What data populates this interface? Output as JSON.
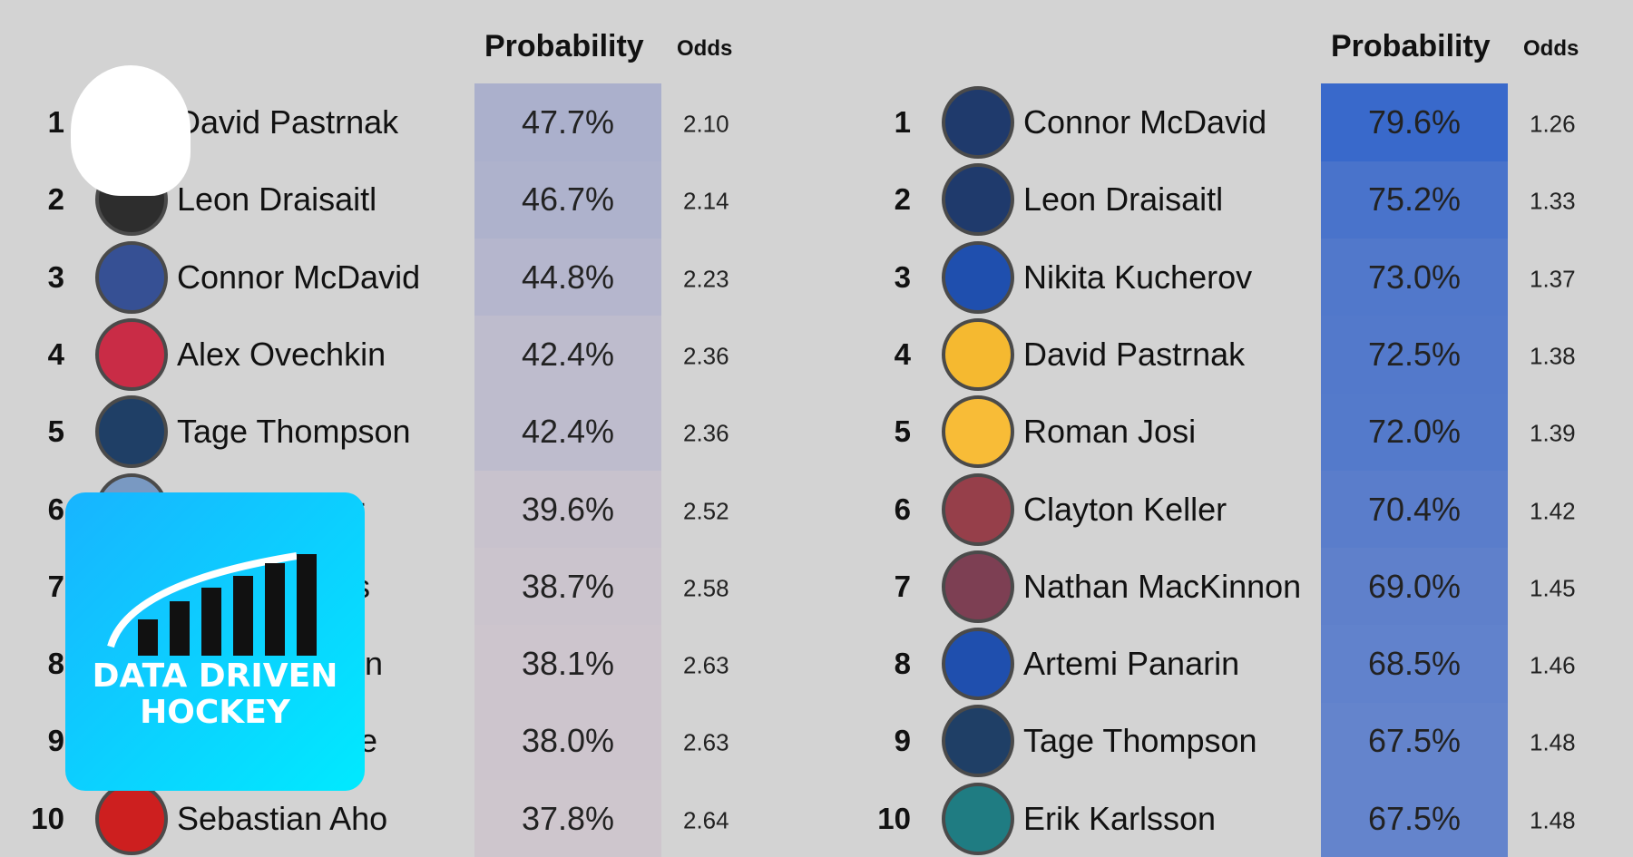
{
  "tables": [
    {
      "headers": {
        "probability": "Probability",
        "odds": "Odds"
      },
      "rows": [
        {
          "rank": 1,
          "name": "David Pastrnak",
          "probability": 47.7,
          "probability_label": "47.7%",
          "odds": "2.10"
        },
        {
          "rank": 2,
          "name": "Leon Draisaitl",
          "probability": 46.7,
          "probability_label": "46.7%",
          "odds": "2.14"
        },
        {
          "rank": 3,
          "name": "Connor McDavid",
          "probability": 44.8,
          "probability_label": "44.8%",
          "odds": "2.23"
        },
        {
          "rank": 4,
          "name": "Alex Ovechkin",
          "probability": 42.4,
          "probability_label": "42.4%",
          "odds": "2.36"
        },
        {
          "rank": 5,
          "name": "Tage Thompson",
          "probability": 42.4,
          "probability_label": "42.4%",
          "odds": "2.36"
        },
        {
          "rank": 6,
          "name": "r",
          "probability": 39.6,
          "probability_label": "39.6%",
          "odds": "2.52"
        },
        {
          "rank": 7,
          "name": "s",
          "probability": 38.7,
          "probability_label": "38.7%",
          "odds": "2.58"
        },
        {
          "rank": 8,
          "name": "nen",
          "probability": 38.1,
          "probability_label": "38.1%",
          "odds": "2.63"
        },
        {
          "rank": 9,
          "name": "ne",
          "probability": 38.0,
          "probability_label": "38.0%",
          "odds": "2.63"
        },
        {
          "rank": 10,
          "name": "Sebastian Aho",
          "probability": 37.8,
          "probability_label": "37.8%",
          "odds": "2.64"
        }
      ]
    },
    {
      "headers": {
        "probability": "Probability",
        "odds": "Odds"
      },
      "rows": [
        {
          "rank": 1,
          "name": "Connor McDavid",
          "probability": 79.6,
          "probability_label": "79.6%",
          "odds": "1.26"
        },
        {
          "rank": 2,
          "name": "Leon Draisaitl",
          "probability": 75.2,
          "probability_label": "75.2%",
          "odds": "1.33"
        },
        {
          "rank": 3,
          "name": "Nikita Kucherov",
          "probability": 73.0,
          "probability_label": "73.0%",
          "odds": "1.37"
        },
        {
          "rank": 4,
          "name": "David Pastrnak",
          "probability": 72.5,
          "probability_label": "72.5%",
          "odds": "1.38"
        },
        {
          "rank": 5,
          "name": "Roman Josi",
          "probability": 72.0,
          "probability_label": "72.0%",
          "odds": "1.39"
        },
        {
          "rank": 6,
          "name": "Clayton Keller",
          "probability": 70.4,
          "probability_label": "70.4%",
          "odds": "1.42"
        },
        {
          "rank": 7,
          "name": "Nathan MacKinnon",
          "probability": 69.0,
          "probability_label": "69.0%",
          "odds": "1.45"
        },
        {
          "rank": 8,
          "name": "Artemi Panarin",
          "probability": 68.5,
          "probability_label": "68.5%",
          "odds": "1.46"
        },
        {
          "rank": 9,
          "name": "Tage Thompson",
          "probability": 67.5,
          "probability_label": "67.5%",
          "odds": "1.48"
        },
        {
          "rank": 10,
          "name": "Erik Karlsson",
          "probability": 67.5,
          "probability_label": "67.5%",
          "odds": "1.48"
        }
      ]
    }
  ],
  "overlay_logo": {
    "line1": "DATA DRIVEN",
    "line2": "HOCKEY"
  }
}
